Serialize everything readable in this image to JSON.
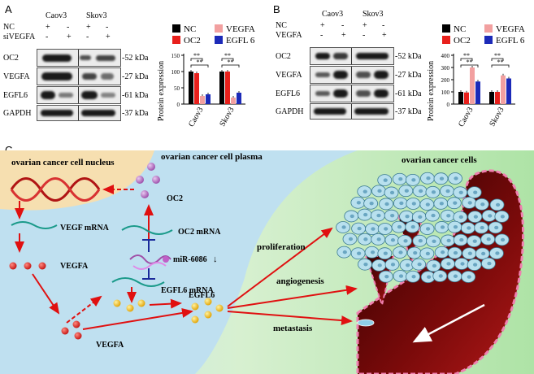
{
  "panels": {
    "a": "A",
    "b": "B",
    "c": "C"
  },
  "panelA": {
    "columns": [
      "Caov3",
      "Skov3"
    ],
    "conditions": [
      {
        "label": "NC",
        "marks": [
          "+",
          "-",
          "+",
          "-"
        ]
      },
      {
        "label": "siVEGFA",
        "marks": [
          "-",
          "+",
          "-",
          "+"
        ]
      }
    ],
    "rows": [
      {
        "protein": "OC2",
        "kda": "-52 kDa"
      },
      {
        "protein": "VEGFA",
        "kda": "-27 kDa"
      },
      {
        "protein": "EGFL6",
        "kda": "-61 kDa"
      },
      {
        "protein": "GAPDH",
        "kda": "-37 kDa"
      }
    ]
  },
  "panelB": {
    "columns": [
      "Caov3",
      "Skov3"
    ],
    "conditions": [
      {
        "label": "NC",
        "marks": [
          "+",
          "-",
          "+",
          "-"
        ]
      },
      {
        "label": "VEGFA",
        "marks": [
          "-",
          "+",
          "-",
          "+"
        ]
      }
    ],
    "rows": [
      {
        "protein": "OC2",
        "kda": "-52 kDa"
      },
      {
        "protein": "VEGFA",
        "kda": "-27 kDa"
      },
      {
        "protein": "EGFL6",
        "kda": "-61 kDa"
      },
      {
        "protein": "GAPDH",
        "kda": "-37 kDa"
      }
    ]
  },
  "chart_data": [
    {
      "type": "bar",
      "panel": "A",
      "categories": [
        "Caov3",
        "Skov3"
      ],
      "ylabel": "Protein expression",
      "ylim": [
        0,
        150
      ],
      "yticks": [
        0,
        50,
        100,
        150
      ],
      "legend": [
        "NC",
        "VEGFA",
        "OC2",
        "EGFL 6"
      ],
      "significance": "**",
      "series": [
        {
          "name": "NC",
          "color": "#000000",
          "values": [
            100,
            100
          ]
        },
        {
          "name": "OC2",
          "color": "#e8201c",
          "values": [
            95,
            100
          ]
        },
        {
          "name": "VEGFA",
          "color": "#f2a0a0",
          "values": [
            25,
            20
          ]
        },
        {
          "name": "EGFL 6",
          "color": "#1c2ab8",
          "values": [
            30,
            35
          ]
        }
      ]
    },
    {
      "type": "bar",
      "panel": "B",
      "categories": [
        "Caov3",
        "Skov3"
      ],
      "ylabel": "Protein expression",
      "ylim": [
        0,
        400
      ],
      "yticks": [
        0,
        100,
        200,
        300,
        400
      ],
      "legend": [
        "NC",
        "VEGFA",
        "OC2",
        "EGFL 6"
      ],
      "significance": "**",
      "series": [
        {
          "name": "NC",
          "color": "#000000",
          "values": [
            100,
            100
          ]
        },
        {
          "name": "OC2",
          "color": "#e8201c",
          "values": [
            95,
            100
          ]
        },
        {
          "name": "VEGFA",
          "color": "#f2a0a0",
          "values": [
            300,
            235
          ]
        },
        {
          "name": "EGFL 6",
          "color": "#1c2ab8",
          "values": [
            185,
            210
          ]
        }
      ]
    }
  ],
  "diagram": {
    "nucleus": "ovarian cancer cell nucleus",
    "plasma": "ovarian cancer cell plasma",
    "cells": "ovarian cancer cells",
    "oc2": "OC2",
    "oc2_mrna": "OC2 mRNA",
    "vegf_mrna": "VEGF mRNA",
    "mirna": "miR-6086",
    "vegfa_inner": "VEGFA",
    "egfl6_mrna": "EGFL6 mRNA",
    "egfl6": "EGFL6",
    "vegfa_outer": "VEGFA",
    "proliferation": "proliferation",
    "angiogenesis": "angiogenesis",
    "metastasis": "metastasis"
  }
}
